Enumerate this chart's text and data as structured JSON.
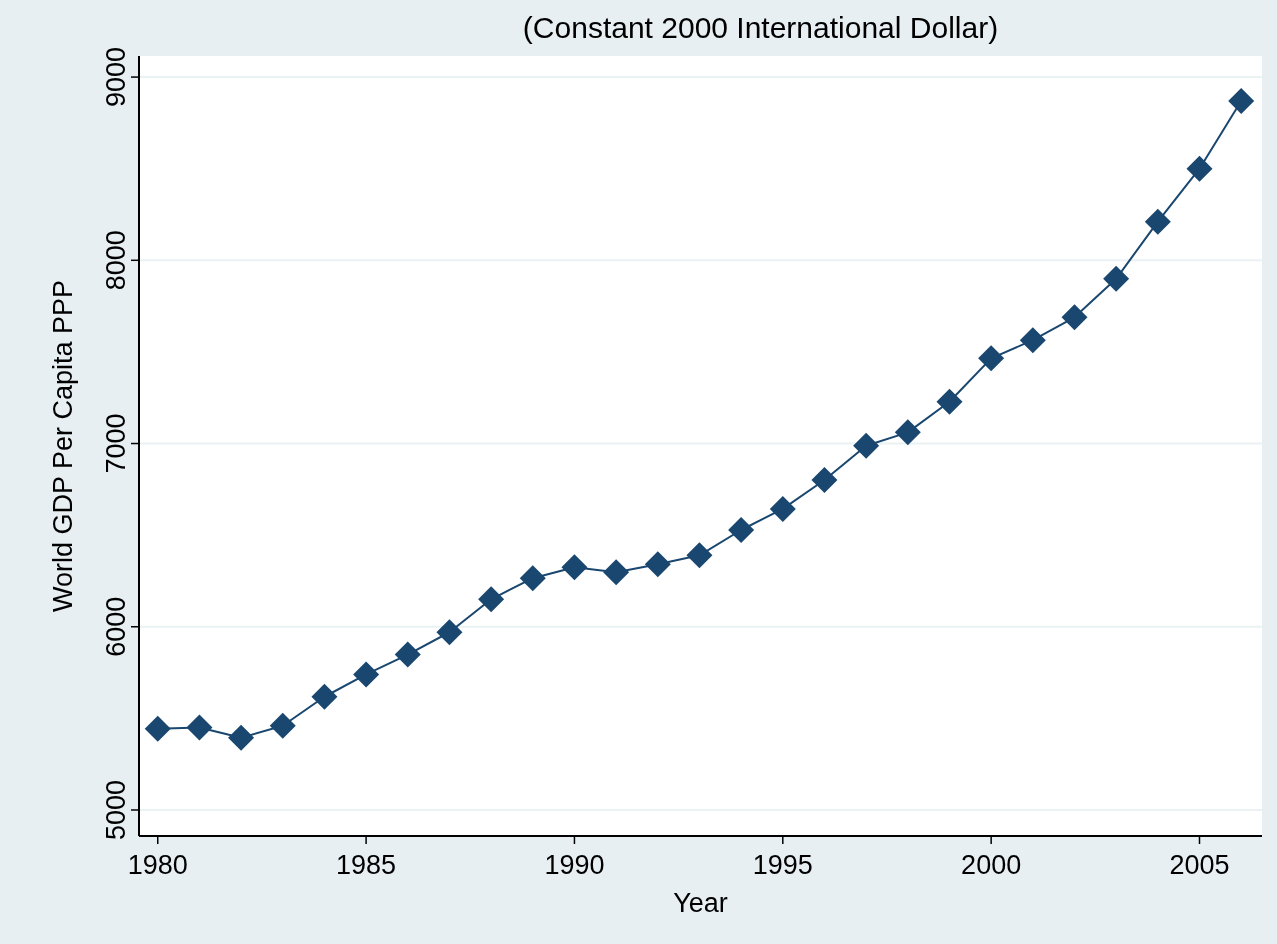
{
  "chart_data": {
    "type": "line",
    "title": "(Constant 2000 International Dollar)",
    "xlabel": "Year",
    "ylabel": "World GDP Per Capita PPP",
    "x": [
      1980,
      1981,
      1982,
      1983,
      1984,
      1985,
      1986,
      1987,
      1988,
      1989,
      1990,
      1991,
      1992,
      1993,
      1994,
      1995,
      1996,
      1997,
      1998,
      1999,
      2000,
      2001,
      2002,
      2003,
      2004,
      2005,
      2006
    ],
    "series": [
      {
        "color": "#1a476f",
        "values": [
          5444,
          5450,
          5394,
          5460,
          5618,
          5740,
          5848,
          5970,
          6150,
          6265,
          6325,
          6298,
          6341,
          6390,
          6528,
          6643,
          6801,
          6988,
          7061,
          7228,
          7465,
          7564,
          7689,
          7899,
          8211,
          8500,
          8869
        ]
      }
    ],
    "xlim": [
      1979.55,
      2006.5
    ],
    "ylim": [
      4858,
      9115
    ],
    "xticks": [
      1980,
      1985,
      1990,
      1995,
      2000,
      2005
    ],
    "yticks": [
      5000,
      6000,
      7000,
      8000,
      9000
    ],
    "grid": "y",
    "marker": "diamond",
    "line_style": "solid"
  }
}
